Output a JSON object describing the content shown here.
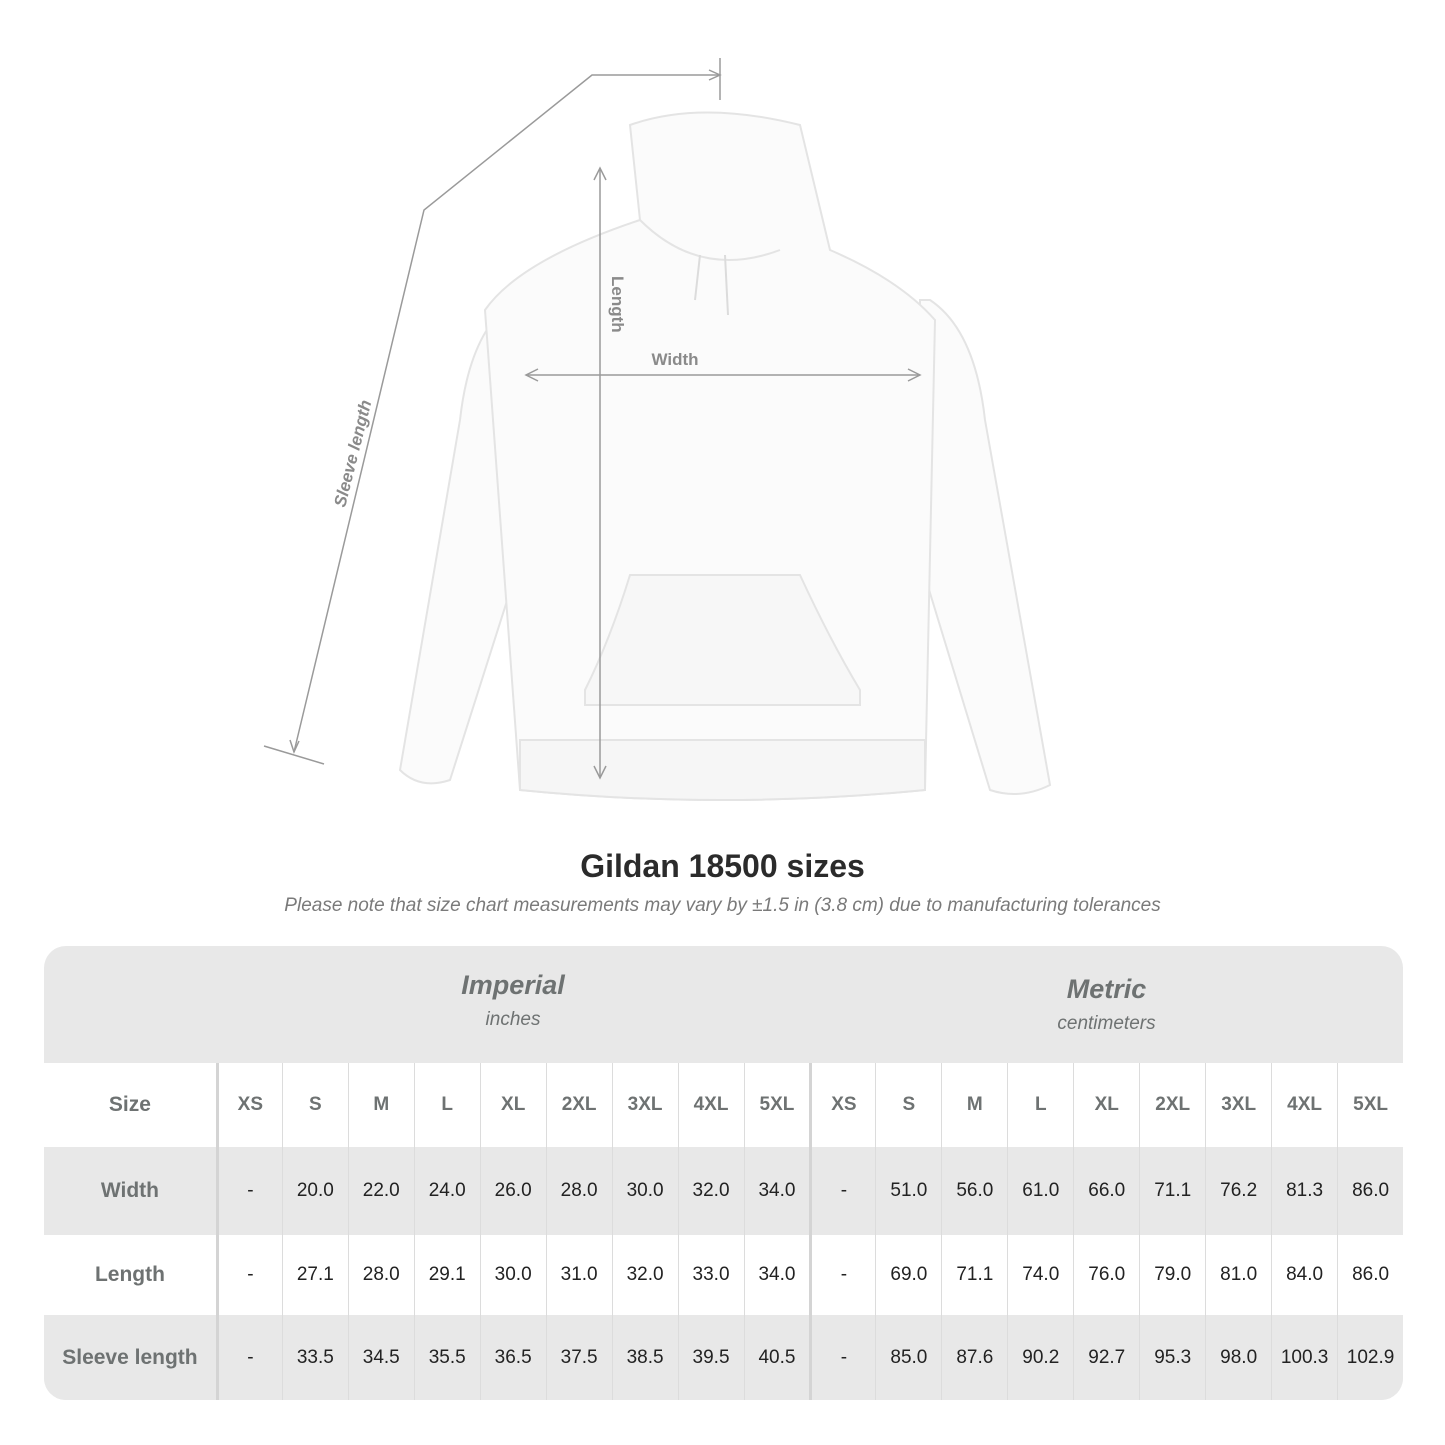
{
  "diagram": {
    "labels": {
      "length": "Length",
      "width": "Width",
      "sleeve_length": "Sleeve length"
    }
  },
  "header": {
    "title": "Gildan 18500 sizes",
    "subtitle": "Please note that size chart measurements may vary by ±1.5 in (3.8 cm) due to manufacturing tolerances"
  },
  "table": {
    "imperial": {
      "name": "Imperial",
      "unit": "inches"
    },
    "metric": {
      "name": "Metric",
      "unit": "centimeters"
    },
    "size_label": "Size",
    "sizes": [
      "XS",
      "S",
      "M",
      "L",
      "XL",
      "2XL",
      "3XL",
      "4XL",
      "5XL"
    ],
    "rows": [
      {
        "label": "Width",
        "imperial": [
          "-",
          "20.0",
          "22.0",
          "24.0",
          "26.0",
          "28.0",
          "30.0",
          "32.0",
          "34.0"
        ],
        "metric": [
          "-",
          "51.0",
          "56.0",
          "61.0",
          "66.0",
          "71.1",
          "76.2",
          "81.3",
          "86.0"
        ]
      },
      {
        "label": "Length",
        "imperial": [
          "-",
          "27.1",
          "28.0",
          "29.1",
          "30.0",
          "31.0",
          "32.0",
          "33.0",
          "34.0"
        ],
        "metric": [
          "-",
          "69.0",
          "71.1",
          "74.0",
          "76.0",
          "79.0",
          "81.0",
          "84.0",
          "86.0"
        ]
      },
      {
        "label": "Sleeve length",
        "imperial": [
          "-",
          "33.5",
          "34.5",
          "35.5",
          "36.5",
          "37.5",
          "38.5",
          "39.5",
          "40.5"
        ],
        "metric": [
          "-",
          "85.0",
          "87.6",
          "90.2",
          "92.7",
          "95.3",
          "98.0",
          "100.3",
          "102.9"
        ]
      }
    ]
  },
  "colors": {
    "header_bg": "#e8e8e8",
    "label_text": "#6e7272",
    "measure_line": "#9a9a9a"
  }
}
